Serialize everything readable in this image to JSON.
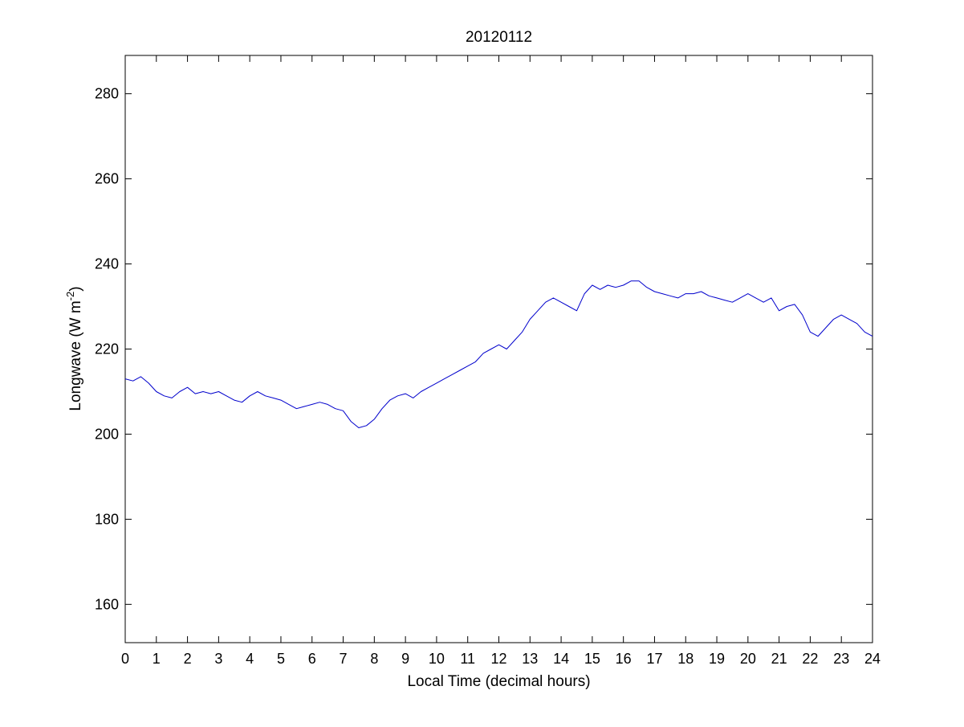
{
  "chart_data": {
    "type": "line",
    "title": "20120112",
    "xlabel": "Local Time (decimal hours)",
    "ylabel": {
      "prefix": "Longwave (W m",
      "superscript": "-2",
      "suffix": ")"
    },
    "xlim": [
      0,
      24
    ],
    "ylim": [
      151,
      289
    ],
    "xticks": [
      "0",
      "1",
      "2",
      "3",
      "4",
      "5",
      "6",
      "7",
      "8",
      "9",
      "10",
      "11",
      "12",
      "13",
      "14",
      "15",
      "16",
      "17",
      "18",
      "19",
      "20",
      "21",
      "22",
      "23",
      "24"
    ],
    "yticks": [
      "160",
      "180",
      "200",
      "220",
      "240",
      "260",
      "280"
    ],
    "grid": false,
    "line_color": "#0000cc",
    "series": [
      {
        "x": [
          0,
          0.25,
          0.5,
          0.75,
          1,
          1.25,
          1.5,
          1.75,
          2,
          2.25,
          2.5,
          2.75,
          3,
          3.25,
          3.5,
          3.75,
          4,
          4.25,
          4.5,
          4.75,
          5,
          5.25,
          5.5,
          5.75,
          6,
          6.25,
          6.5,
          6.75,
          7,
          7.25,
          7.5,
          7.75,
          8,
          8.25,
          8.5,
          8.75,
          9,
          9.25,
          9.5,
          9.75,
          10,
          10.25,
          10.5,
          10.75,
          11,
          11.25,
          11.5,
          11.75,
          12,
          12.25,
          12.5,
          12.75,
          13,
          13.25,
          13.5,
          13.75,
          14,
          14.25,
          14.5,
          14.75,
          15,
          15.25,
          15.5,
          15.75,
          16,
          16.25,
          16.5,
          16.75,
          17,
          17.25,
          17.5,
          17.75,
          18,
          18.25,
          18.5,
          18.75,
          19,
          19.25,
          19.5,
          19.75,
          20,
          20.25,
          20.5,
          20.75,
          21,
          21.25,
          21.5,
          21.75,
          22,
          22.25,
          22.5,
          22.75,
          23,
          23.25,
          23.5,
          23.75,
          24
        ],
        "y": [
          213,
          212.5,
          213.5,
          212,
          210,
          209,
          208.5,
          210,
          211,
          209.5,
          210,
          209.5,
          210,
          209,
          208,
          207.5,
          209,
          210,
          209,
          208.5,
          208,
          207,
          206,
          206.5,
          207,
          207.5,
          207,
          206,
          205.5,
          203,
          201.5,
          202,
          203.5,
          206,
          208,
          209,
          209.5,
          208.5,
          210,
          211,
          212,
          213,
          214,
          215,
          216,
          217,
          219,
          220,
          221,
          220,
          222,
          224,
          227,
          229,
          231,
          232,
          231,
          230,
          229,
          233,
          235,
          234,
          235,
          234.5,
          235,
          236,
          236,
          234.5,
          233.5,
          233,
          232.5,
          232,
          233,
          233,
          233.5,
          232.5,
          232,
          231.5,
          231,
          232,
          233,
          232,
          231,
          232,
          229,
          230,
          230.5,
          228,
          224,
          223,
          225,
          227,
          228,
          227,
          226,
          224,
          223
        ]
      }
    ]
  }
}
